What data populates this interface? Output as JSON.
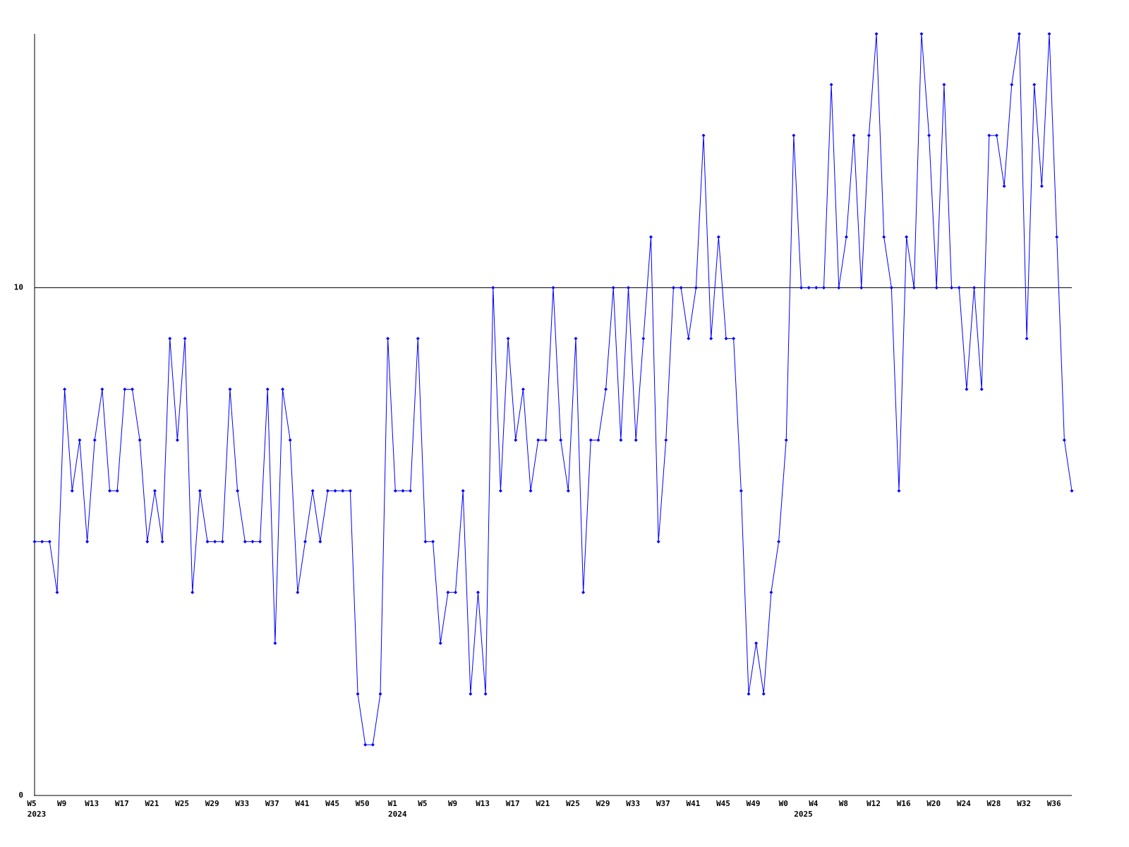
{
  "chart_data": {
    "type": "line",
    "categories": [
      "W5",
      null,
      null,
      null,
      "W9",
      null,
      null,
      null,
      "W13",
      null,
      null,
      null,
      "W17",
      null,
      null,
      null,
      "W21",
      null,
      null,
      null,
      "W25",
      null,
      null,
      null,
      "W29",
      null,
      null,
      null,
      "W33",
      null,
      null,
      null,
      "W37",
      null,
      null,
      null,
      "W41",
      null,
      null,
      null,
      "W45",
      null,
      null,
      null,
      "W50",
      null,
      null,
      null,
      "W1",
      null,
      null,
      null,
      "W5",
      null,
      null,
      null,
      "W9",
      null,
      null,
      null,
      "W13",
      null,
      null,
      null,
      "W17",
      null,
      null,
      null,
      "W21",
      null,
      null,
      null,
      "W25",
      null,
      null,
      null,
      "W29",
      null,
      null,
      null,
      "W33",
      null,
      null,
      null,
      "W37",
      null,
      null,
      null,
      "W41",
      null,
      null,
      null,
      "W45",
      null,
      null,
      null,
      "W49",
      null,
      null,
      null,
      "W0",
      null,
      null,
      null,
      "W4",
      null,
      null,
      null,
      "W8",
      null,
      null,
      null,
      "W12",
      null,
      null,
      null,
      "W16",
      null,
      null,
      null,
      "W20",
      null,
      null,
      null,
      "W24",
      null,
      null,
      null,
      "W28",
      null,
      null,
      null,
      "W32",
      null,
      null,
      null,
      "W36",
      null,
      null
    ],
    "category_years": [
      "2023",
      null,
      null,
      null,
      null,
      null,
      null,
      null,
      null,
      null,
      null,
      null,
      null,
      null,
      null,
      null,
      null,
      null,
      null,
      null,
      null,
      null,
      null,
      null,
      null,
      null,
      null,
      null,
      null,
      null,
      null,
      null,
      null,
      null,
      null,
      null,
      null,
      null,
      null,
      null,
      null,
      null,
      null,
      null,
      null,
      null,
      null,
      null,
      "2024",
      null,
      null,
      null,
      null,
      null,
      null,
      null,
      null,
      null,
      null,
      null,
      null,
      null,
      null,
      null,
      null,
      null,
      null,
      null,
      null,
      null,
      null,
      null,
      null,
      null,
      null,
      null,
      null,
      null,
      null,
      null,
      null,
      null,
      null,
      null,
      null,
      null,
      null,
      null,
      null,
      null,
      null,
      null,
      null,
      null,
      null,
      null,
      null,
      null,
      null,
      null,
      null,
      null,
      "2025",
      null,
      null,
      null,
      null,
      null,
      null,
      null,
      null,
      null,
      null,
      null,
      null,
      null,
      null,
      null,
      null,
      null,
      null,
      null,
      null,
      null,
      null,
      null,
      null,
      null,
      null,
      null,
      null,
      null,
      null,
      null,
      null,
      null,
      null,
      null,
      null,
      null,
      null
    ],
    "values": [
      5,
      5,
      5,
      4,
      8,
      6,
      7,
      5,
      7,
      8,
      6,
      6,
      8,
      8,
      7,
      5,
      6,
      5,
      9,
      7,
      9,
      4,
      6,
      5,
      5,
      5,
      8,
      6,
      5,
      5,
      5,
      8,
      3,
      8,
      7,
      4,
      5,
      6,
      5,
      6,
      6,
      6,
      6,
      2,
      1,
      1,
      2,
      9,
      6,
      6,
      6,
      9,
      5,
      5,
      3,
      4,
      4,
      6,
      2,
      4,
      2,
      10,
      6,
      9,
      7,
      8,
      6,
      7,
      7,
      10,
      7,
      6,
      9,
      4,
      7,
      7,
      8,
      10,
      7,
      10,
      7,
      9,
      11,
      5,
      7,
      10,
      10,
      9,
      10,
      13,
      9,
      11,
      9,
      9,
      6,
      2,
      3,
      2,
      4,
      5,
      7,
      13,
      10,
      10,
      10,
      10,
      14,
      10,
      11,
      13,
      10,
      13,
      15,
      11,
      10,
      6,
      11,
      10,
      15,
      13,
      10,
      14,
      10,
      10,
      8,
      10,
      8,
      13,
      13,
      12,
      14,
      15,
      9,
      14,
      12,
      15,
      11,
      7,
      6
    ],
    "color": "#0000ff",
    "ylim": [
      0,
      15
    ],
    "yticks": [
      0,
      10
    ],
    "grid": true
  }
}
